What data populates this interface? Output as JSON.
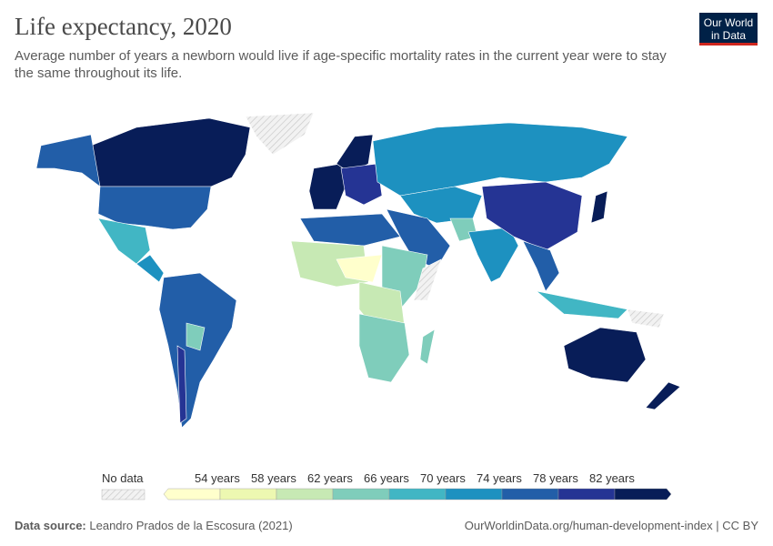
{
  "header": {
    "title": "Life expectancy, 2020",
    "subtitle": "Average number of years a newborn would live if age-specific mortality rates in the current year were to stay the same throughout its life.",
    "logo": "Our World in Data"
  },
  "legend": {
    "no_data_label": "No data",
    "no_data_color": "#e6e6e6",
    "bins": [
      {
        "label": "",
        "color": "#ffffcc"
      },
      {
        "label": "54 years",
        "color": "#edf8b1"
      },
      {
        "label": "58 years",
        "color": "#c7e9b4"
      },
      {
        "label": "62 years",
        "color": "#7fcdbb"
      },
      {
        "label": "66 years",
        "color": "#41b6c4"
      },
      {
        "label": "70 years",
        "color": "#1d91c0"
      },
      {
        "label": "74 years",
        "color": "#225ea8"
      },
      {
        "label": "78 years",
        "color": "#253494"
      },
      {
        "label": "82 years",
        "color": "#081d58"
      }
    ]
  },
  "footer": {
    "source_label": "Data source:",
    "source": "Leandro Prados de la Escosura (2021)",
    "link": "OurWorldinData.org/human-development-index | CC BY"
  }
}
